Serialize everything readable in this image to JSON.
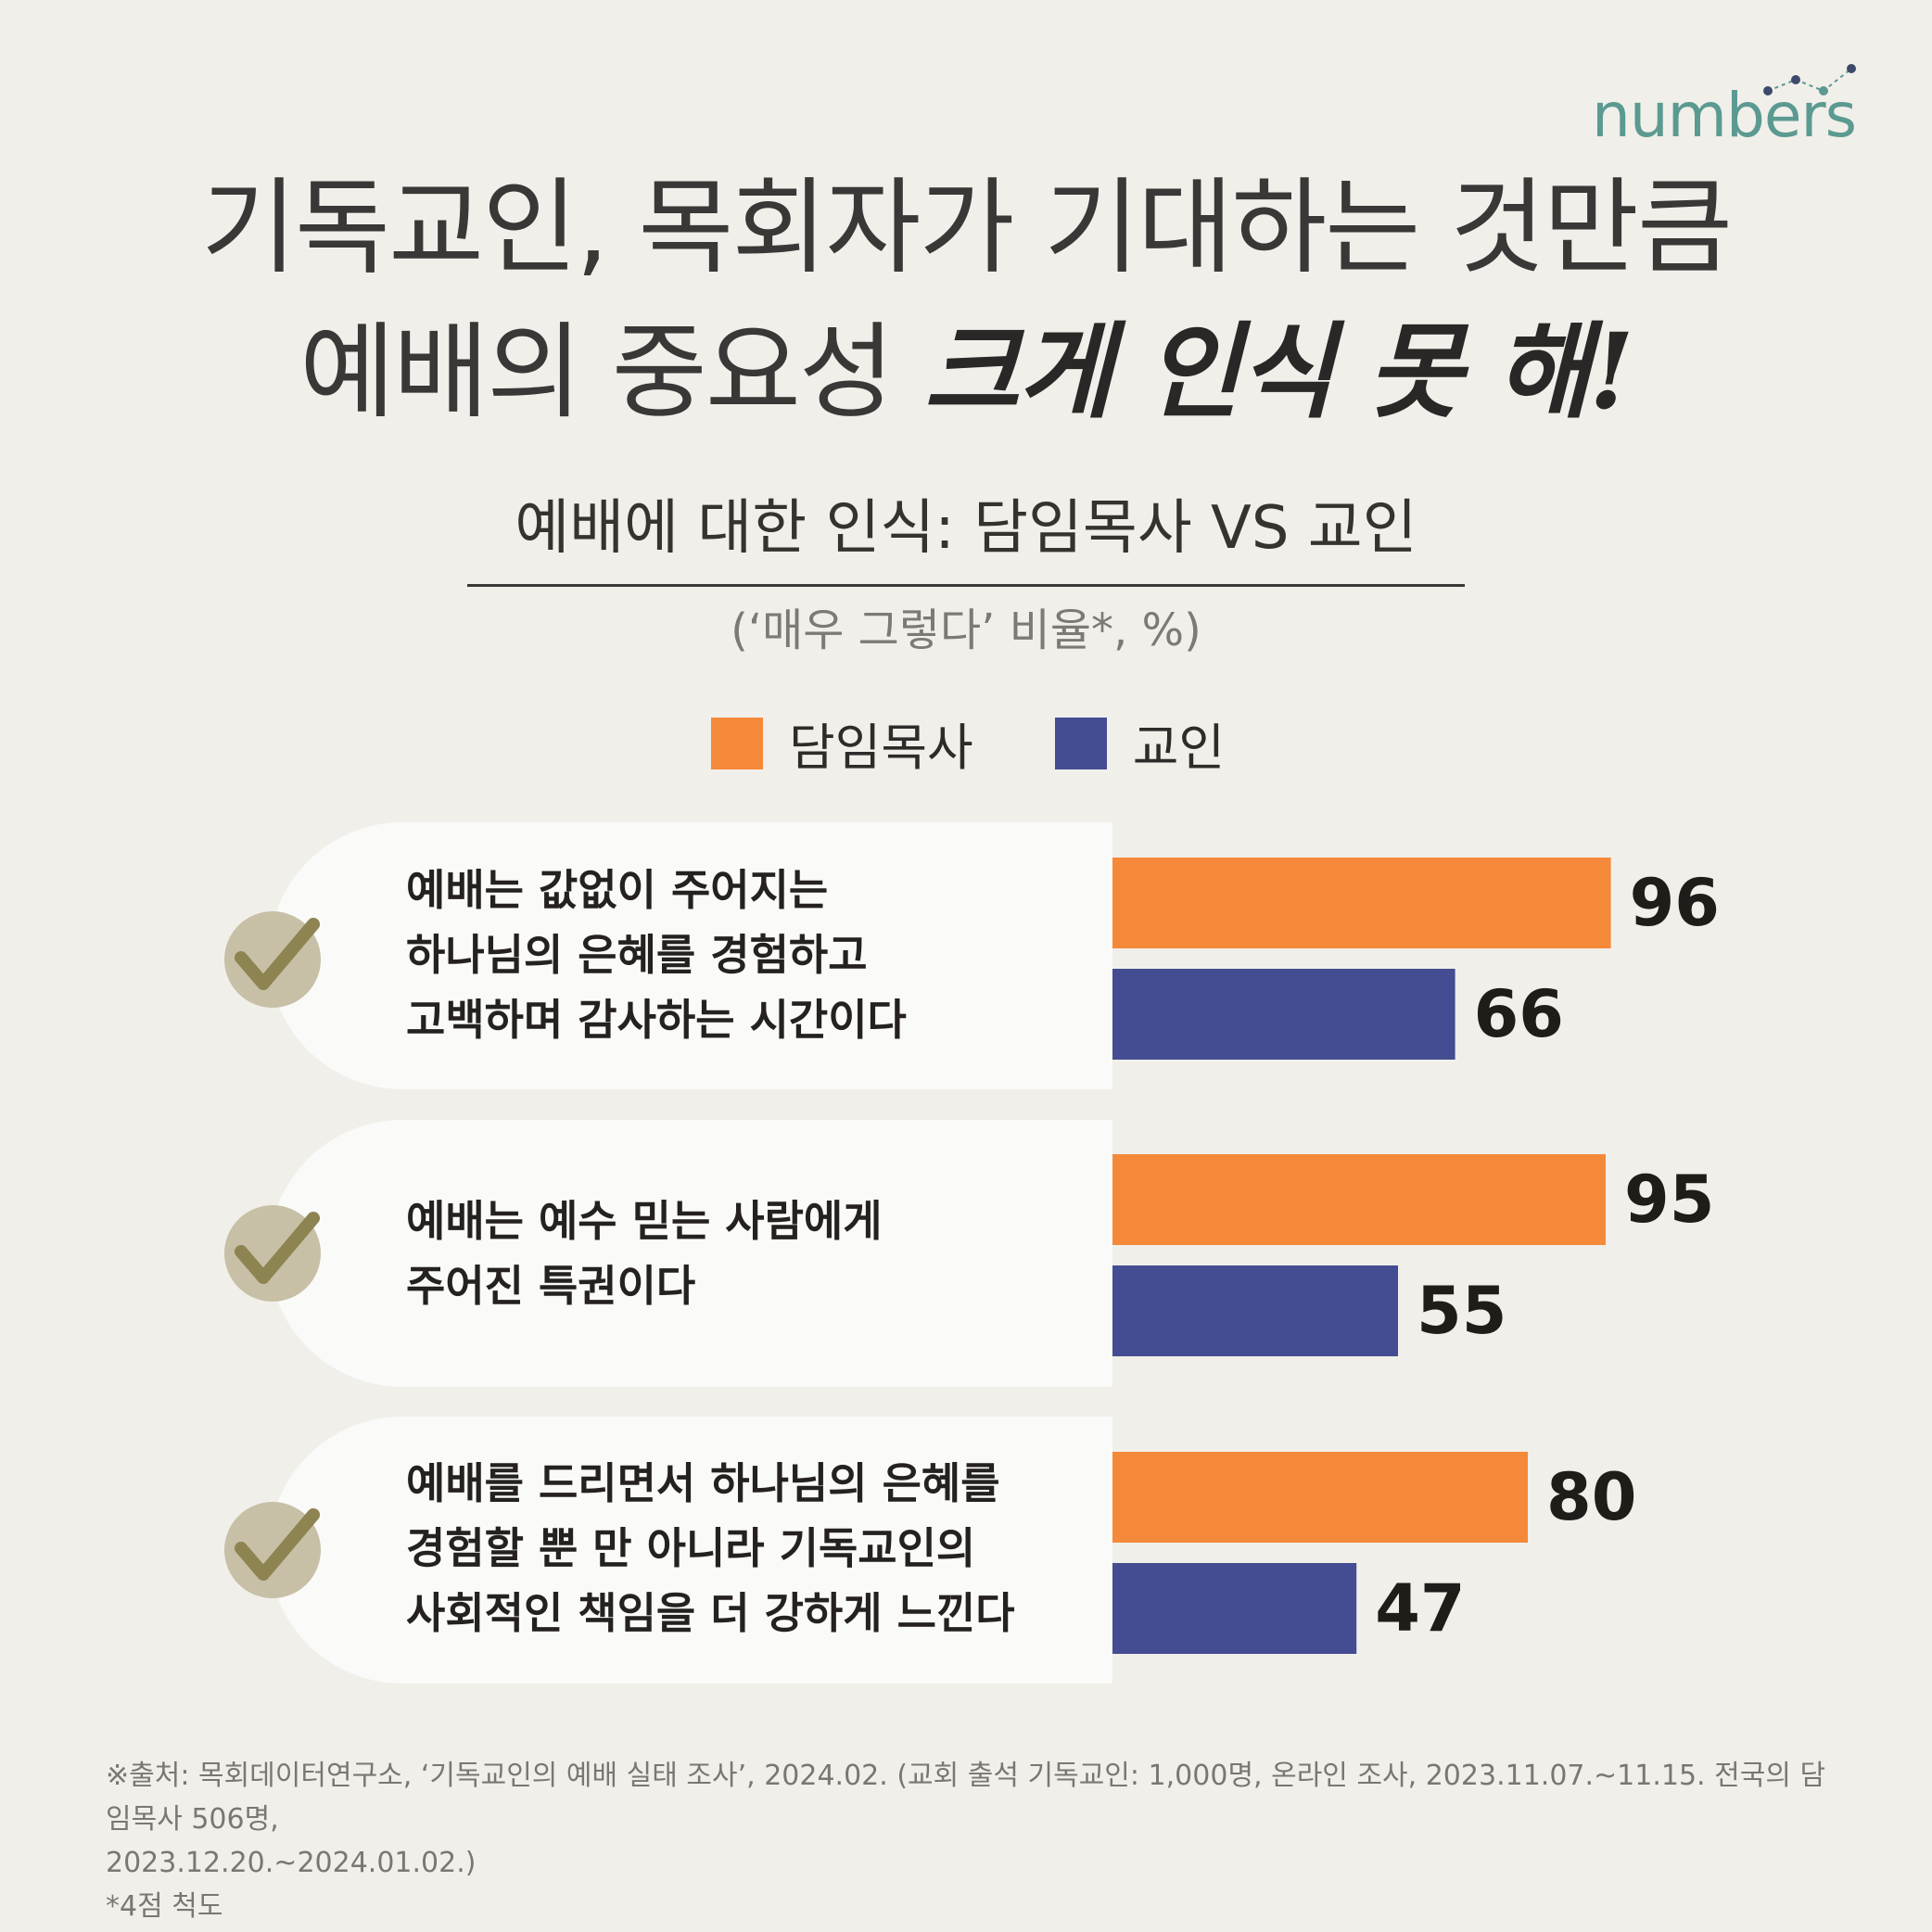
{
  "brand": {
    "name": "numbers",
    "color": "#5b9a91"
  },
  "title": {
    "line1": "기독교인, 목회자가 기대하는 것만큼",
    "line2_plain": "예배의 중요성 ",
    "line2_accent": "크게 인식 못 해!"
  },
  "subtitle": "예배에 대한 인식: 담임목사 VS 교인",
  "unit": "(‘매우 그렇다’ 비율*, %)",
  "colors": {
    "pastor": "#f5893a",
    "member": "#444d91",
    "check_bg": "#c7c0a6",
    "check_mark": "#8d8452"
  },
  "chart_data": {
    "type": "bar",
    "orientation": "horizontal",
    "categories": [
      "예배는 값없이 주어지는\n하나님의 은혜를 경험하고\n고백하며 감사하는 시간이다",
      "예배는 예수 믿는 사람에게\n주어진 특권이다",
      "예배를 드리면서 하나님의 은혜를\n경험할 뿐 만 아니라 기독교인의\n사회적인 책임을 더 강하게 느낀다"
    ],
    "series": [
      {
        "name": "담임목사",
        "values": [
          96,
          95,
          80
        ]
      },
      {
        "name": "교인",
        "values": [
          66,
          55,
          47
        ]
      }
    ],
    "xlim": [
      0,
      100
    ],
    "legend": "top-center",
    "grid": false,
    "data_labels": true
  },
  "footnote": {
    "line1": "※출처: 목회데이터연구소, ‘기독교인의 예배 실태 조사’, 2024.02. (교회 출석 기독교인: 1,000명, 온라인 조사, 2023.11.07.~11.15. 전국의 담임목사 506명,",
    "line2": "2023.12.20.~2024.01.02.)",
    "line3": "*4점 척도"
  }
}
